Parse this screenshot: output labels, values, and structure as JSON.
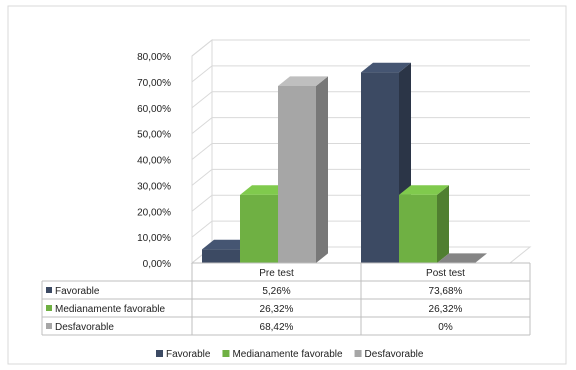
{
  "chart_data": {
    "type": "bar",
    "categories": [
      "Pre test",
      "Post test"
    ],
    "series": [
      {
        "name": "Favorable",
        "values": [
          5.26,
          73.68
        ],
        "labels": [
          "5,26%",
          "73,68%"
        ],
        "color": "#3c4a63"
      },
      {
        "name": "Medianamente favorable",
        "values": [
          26.32,
          26.32
        ],
        "labels": [
          "26,32%",
          "26,32%"
        ],
        "color": "#6fb043"
      },
      {
        "name": "Desfavorable",
        "values": [
          68.42,
          0
        ],
        "labels": [
          "68,42%",
          "0%"
        ],
        "color": "#a6a6a6"
      }
    ],
    "yticks": [
      "0,00%",
      "10,00%",
      "20,00%",
      "30,00%",
      "40,00%",
      "50,00%",
      "60,00%",
      "70,00%",
      "80,00%"
    ],
    "ylim": [
      0,
      80
    ],
    "grid": true,
    "legend_position": "bottom",
    "data_table": true
  }
}
